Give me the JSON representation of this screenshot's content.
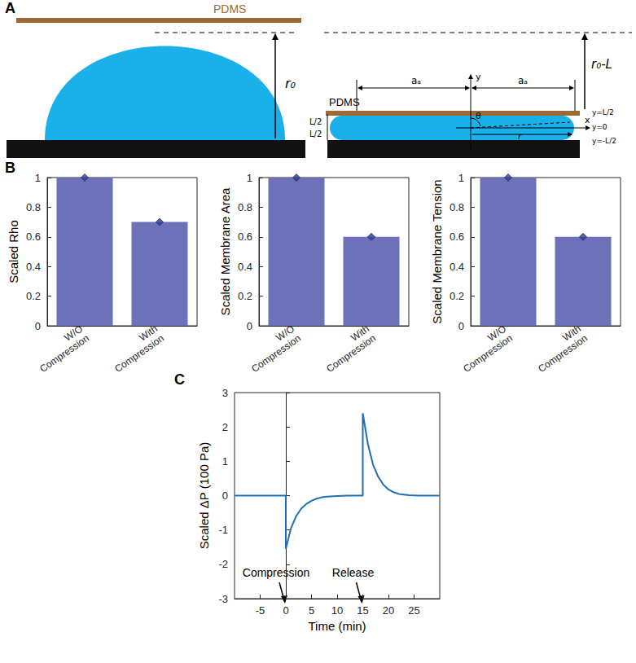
{
  "panel_labels": [
    "A",
    "B",
    "C"
  ],
  "diagram": {
    "left": {
      "plate_label": "PDMS",
      "height_label": "r₀"
    },
    "right": {
      "plate_label": "PDMS",
      "height_label": "r₀-L",
      "half_width_label": "aₐ",
      "y_axis_label": "y",
      "x_axis_label": "x",
      "angle_label": "θ",
      "radius_label": "r",
      "half_height_label": "L/2",
      "level_labels": [
        "y=L/2",
        "y=0",
        "y=-L/2"
      ]
    }
  },
  "chart_data": [
    {
      "type": "bar",
      "categories": [
        "W/O\nCompression",
        "With\nCompression"
      ],
      "values": [
        1,
        0.7
      ],
      "color": "#6c71b9",
      "marker": "diamond",
      "ylabel": "Scaled Rho",
      "ylim": [
        0,
        1
      ],
      "yticks": [
        0,
        0.2,
        0.4,
        0.6,
        0.8,
        1
      ],
      "grid": false
    },
    {
      "type": "bar",
      "categories": [
        "W/O\nCompression",
        "With\nCompression"
      ],
      "values": [
        1,
        0.6
      ],
      "color": "#6c71b9",
      "marker": "diamond",
      "ylabel": "Scaled Membrane Area",
      "ylim": [
        0,
        1
      ],
      "yticks": [
        0,
        0.2,
        0.4,
        0.6,
        0.8,
        1
      ],
      "grid": false
    },
    {
      "type": "bar",
      "categories": [
        "W/O\nCompression",
        "With\nCompression"
      ],
      "values": [
        1,
        0.6
      ],
      "color": "#6c71b9",
      "marker": "diamond",
      "ylabel": "Scaled Membrane Tension",
      "ylim": [
        0,
        1
      ],
      "yticks": [
        0,
        0.2,
        0.4,
        0.6,
        0.8,
        1
      ],
      "grid": false
    },
    {
      "type": "line",
      "x": [
        -10,
        0,
        0,
        1,
        2,
        3,
        4,
        5,
        6,
        7,
        8,
        10,
        12,
        15,
        15,
        16,
        17,
        18,
        19,
        20,
        21,
        22,
        24,
        26,
        30
      ],
      "values": [
        0,
        0,
        -1.55,
        -0.95,
        -0.6,
        -0.38,
        -0.24,
        -0.15,
        -0.09,
        -0.05,
        -0.03,
        -0.01,
        0,
        0,
        2.4,
        1.5,
        0.9,
        0.55,
        0.32,
        0.18,
        0.1,
        0.05,
        0.01,
        0,
        0
      ],
      "color": "#1f6fb2",
      "line_style": "solid",
      "xlabel": "Time (min)",
      "ylabel": "Scaled ΔP (100 Pa)",
      "xlim": [
        -10,
        30
      ],
      "xticks": [
        -5,
        0,
        5,
        10,
        15,
        20,
        25
      ],
      "ylim": [
        -3,
        3
      ],
      "yticks": [
        -3,
        -2,
        -1,
        0,
        1,
        2,
        3
      ],
      "grid": false,
      "annotations": [
        {
          "text": "Compression",
          "x": 0
        },
        {
          "text": "Release",
          "x": 15
        }
      ]
    }
  ]
}
